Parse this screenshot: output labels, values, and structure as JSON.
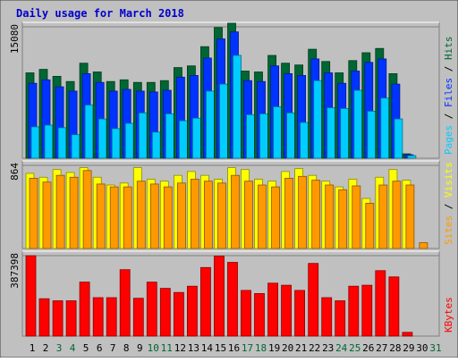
{
  "chart_data": {
    "type": "bar",
    "title": "Daily usage for March 2018",
    "days": [
      "1",
      "2",
      "3",
      "4",
      "5",
      "6",
      "7",
      "8",
      "9",
      "10",
      "11",
      "12",
      "13",
      "14",
      "15",
      "16",
      "17",
      "18",
      "19",
      "20",
      "21",
      "22",
      "23",
      "24",
      "25",
      "26",
      "27",
      "28",
      "29",
      "30",
      "31"
    ],
    "weekend_days": [
      "3",
      "4",
      "10",
      "11",
      "17",
      "18",
      "24",
      "25",
      "31"
    ],
    "panels": [
      {
        "id": "hits",
        "max_label": "15080",
        "ymax": 15080,
        "labels": [
          "Pages",
          "Files",
          "Hits"
        ],
        "series": [
          {
            "name": "Hits",
            "color": "#006633",
            "values": [
              9800,
              10200,
              9400,
              8800,
              10900,
              9900,
              8800,
              9000,
              8700,
              8700,
              8900,
              10400,
              10600,
              12800,
              15000,
              15500,
              10000,
              9900,
              11800,
              10900,
              10700,
              12500,
              11100,
              9800,
              11200,
              12100,
              12600,
              9700,
              500,
              0,
              0
            ]
          },
          {
            "name": "Files",
            "color": "#0033ff",
            "values": [
              8600,
              9000,
              8200,
              7700,
              9700,
              8700,
              7700,
              7900,
              7700,
              7600,
              7800,
              9300,
              9500,
              11500,
              13700,
              14500,
              8900,
              8800,
              10600,
              9700,
              9500,
              11400,
              9800,
              8600,
              10000,
              11000,
              11400,
              8500,
              400,
              0,
              0
            ]
          },
          {
            "name": "Pages",
            "color": "#00ccff",
            "values": [
              3600,
              3800,
              3500,
              2700,
              6100,
              4500,
              3400,
              4000,
              5200,
              3000,
              5100,
              4300,
              4600,
              7700,
              8500,
              11800,
              5000,
              5100,
              5900,
              5200,
              4100,
              8900,
              5800,
              5700,
              7800,
              5400,
              6900,
              4500,
              300,
              0,
              0
            ]
          }
        ]
      },
      {
        "id": "visits",
        "max_label": "864",
        "ymax": 864,
        "labels": [
          "Sites",
          "Visits"
        ],
        "series": [
          {
            "name": "Visits",
            "color": "#ffff00",
            "values": [
              780,
              740,
              820,
              790,
              840,
              740,
              660,
              680,
              840,
              720,
              700,
              760,
              800,
              760,
              720,
              840,
              820,
              720,
              700,
              800,
              830,
              760,
              700,
              640,
              720,
              520,
              740,
              820,
              710,
              0,
              0
            ]
          },
          {
            "name": "Sites",
            "color": "#ff9900",
            "values": [
              730,
              690,
              760,
              740,
              810,
              670,
              640,
              640,
              700,
              670,
              640,
              680,
              720,
              700,
              680,
              760,
              700,
              660,
              640,
              730,
              750,
              710,
              660,
              610,
              650,
              470,
              660,
              700,
              660,
              60,
              0
            ]
          }
        ]
      },
      {
        "id": "kbytes",
        "max_label": "387398",
        "ymax": 387398,
        "labels": [
          "KBytes"
        ],
        "series": [
          {
            "name": "KBytes",
            "color": "#ff0000",
            "values": [
              387000,
              180000,
              170000,
              170000,
              260000,
              185000,
              185000,
              320000,
              182000,
              260000,
              230000,
              210000,
              240000,
              330000,
              385000,
              355000,
              220000,
              205000,
              255000,
              245000,
              220000,
              350000,
              185000,
              170000,
              240000,
              245000,
              315000,
              285000,
              18000,
              0,
              0
            ]
          }
        ]
      }
    ]
  }
}
